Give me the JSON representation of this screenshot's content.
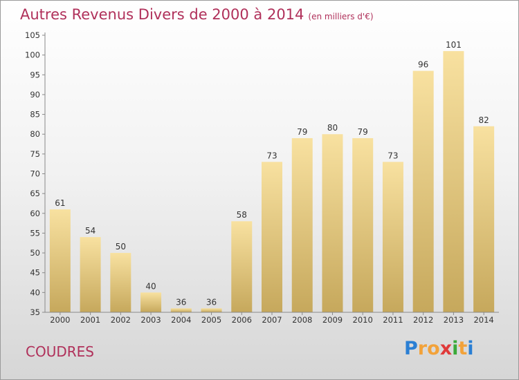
{
  "title": "Autres Revenus Divers de 2000 à 2014",
  "unit": "(en milliers d'€)",
  "place": "COUDRES",
  "logo": {
    "letters": [
      "P",
      "r",
      "o",
      "x",
      "i",
      "t",
      "i"
    ],
    "colors": [
      "#2a7fd4",
      "#f2a23a",
      "#f2a23a",
      "#e03a3a",
      "#3aaa3a",
      "#f2a23a",
      "#2a7fd4"
    ]
  },
  "chart_data": {
    "type": "bar",
    "categories": [
      "2000",
      "2001",
      "2002",
      "2003",
      "2004",
      "2005",
      "2006",
      "2007",
      "2008",
      "2009",
      "2010",
      "2011",
      "2012",
      "2013",
      "2014"
    ],
    "values": [
      61,
      54,
      50,
      40,
      36,
      36,
      58,
      73,
      79,
      80,
      79,
      73,
      96,
      101,
      82
    ],
    "ylim": [
      35,
      105
    ],
    "yticks": [
      35,
      40,
      45,
      50,
      55,
      60,
      65,
      70,
      75,
      80,
      85,
      90,
      95,
      100,
      105
    ],
    "grid": false,
    "bar_color_top": "#f8e1a0",
    "bar_color_bottom": "#c6a85c",
    "title_color": "#b0305a"
  }
}
